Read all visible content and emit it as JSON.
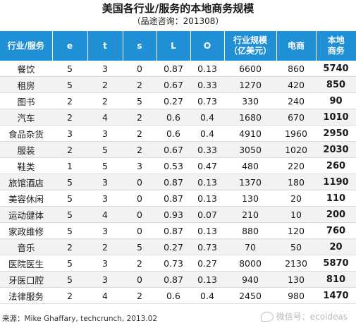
{
  "title": "美国各行业/服务的本地商务规模",
  "subtitle": "（品途咨询：201308）",
  "table": {
    "headers": [
      "行业/服务",
      "e",
      "t",
      "s",
      "L",
      "O",
      "行业规模\n（亿美元）",
      "电商",
      "本地\n商务"
    ],
    "rows": [
      [
        "餐饮",
        "5",
        "3",
        "0",
        "0.87",
        "0.13",
        "6600",
        "860",
        "5740"
      ],
      [
        "租房",
        "5",
        "2",
        "2",
        "0.67",
        "0.33",
        "1270",
        "420",
        "850"
      ],
      [
        "图书",
        "2",
        "2",
        "5",
        "0.27",
        "0.73",
        "330",
        "240",
        "90"
      ],
      [
        "汽车",
        "2",
        "4",
        "2",
        "0.6",
        "0.4",
        "1680",
        "670",
        "1010"
      ],
      [
        "食品杂货",
        "3",
        "3",
        "2",
        "0.6",
        "0.4",
        "4910",
        "1960",
        "2950"
      ],
      [
        "服装",
        "2",
        "5",
        "2",
        "0.67",
        "0.33",
        "3050",
        "1020",
        "2030"
      ],
      [
        "鞋类",
        "1",
        "5",
        "3",
        "0.53",
        "0.47",
        "480",
        "220",
        "260"
      ],
      [
        "旅馆酒店",
        "5",
        "3",
        "0",
        "0.87",
        "0.13",
        "1370",
        "180",
        "1190"
      ],
      [
        "美容休闲",
        "5",
        "3",
        "0",
        "0.87",
        "0.13",
        "130",
        "20",
        "110"
      ],
      [
        "运动健体",
        "5",
        "4",
        "0",
        "0.93",
        "0.07",
        "210",
        "10",
        "200"
      ],
      [
        "家政维修",
        "5",
        "3",
        "0",
        "0.87",
        "0.13",
        "880",
        "120",
        "760"
      ],
      [
        "音乐",
        "2",
        "2",
        "5",
        "0.27",
        "0.73",
        "70",
        "50",
        "20"
      ],
      [
        "医院医生",
        "5",
        "3",
        "2",
        "0.73",
        "0.27",
        "8000",
        "2130",
        "5870"
      ],
      [
        "牙医口腔",
        "5",
        "3",
        "0",
        "0.87",
        "0.13",
        "940",
        "130",
        "810"
      ],
      [
        "法律服务",
        "2",
        "4",
        "2",
        "0.6",
        "0.4",
        "2450",
        "980",
        "1470"
      ]
    ]
  },
  "source": "来源：Mike Ghaffary, techcrunch, 2013.02",
  "watermark": "微信号：ecoideas"
}
